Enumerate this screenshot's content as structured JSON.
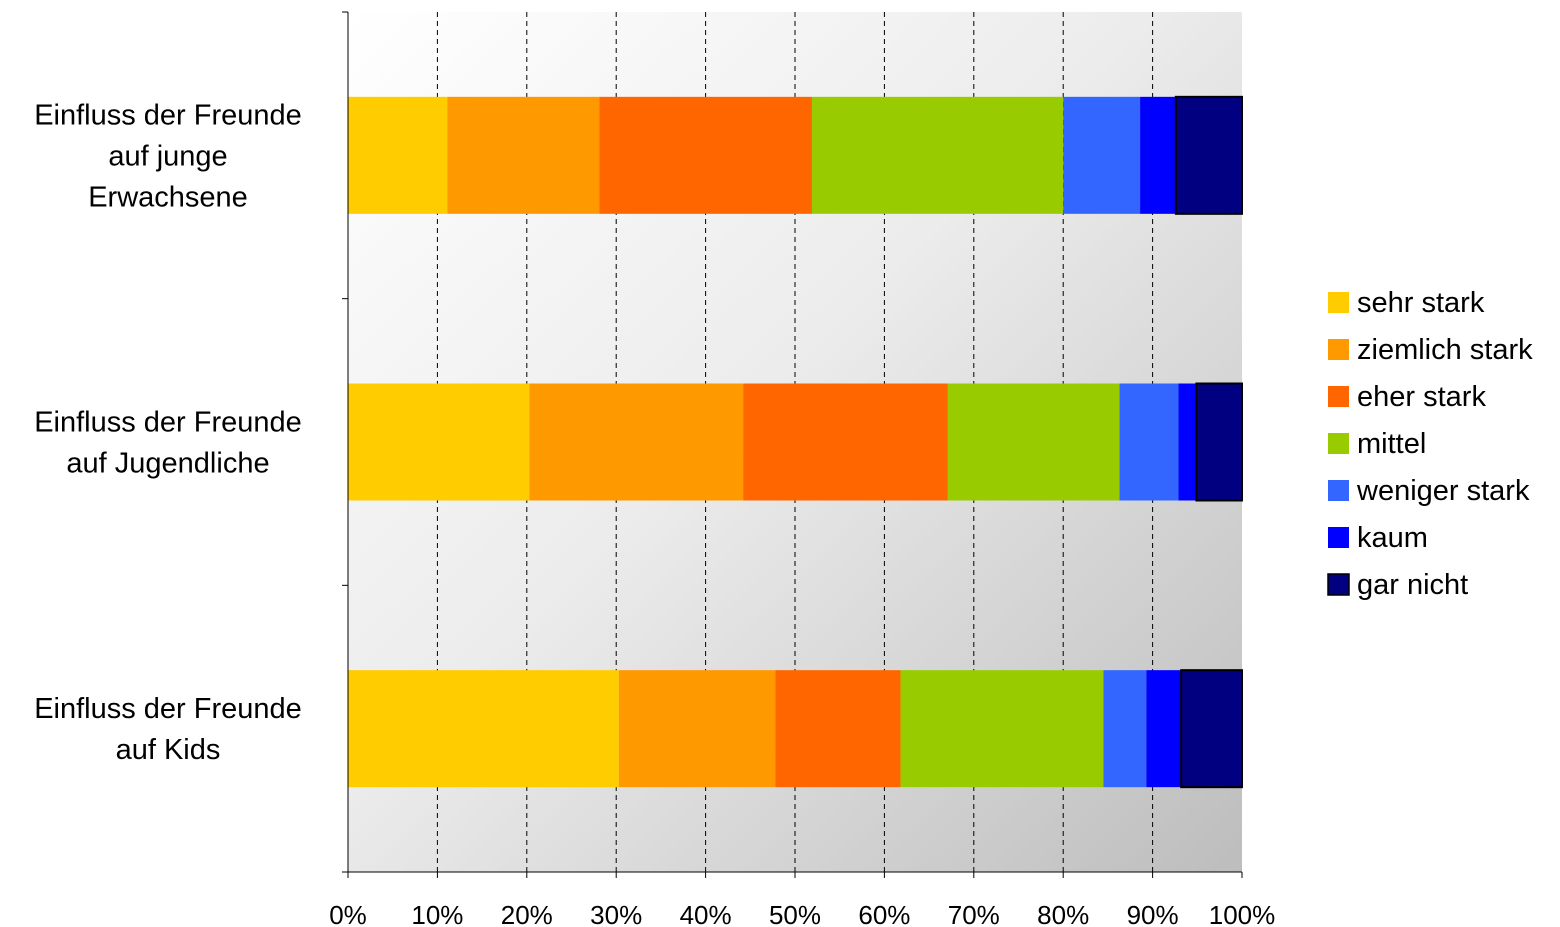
{
  "chart_data": {
    "type": "bar",
    "orientation": "horizontal",
    "stacked": "percent",
    "categories": [
      [
        "Einfluss der Freunde",
        "auf junge",
        "Erwachsene"
      ],
      [
        "Einfluss der Freunde",
        "auf Jugendliche"
      ],
      [
        "Einfluss der Freunde",
        "auf Kids"
      ]
    ],
    "series": [
      {
        "name": "sehr stark",
        "color": "#FFCC00",
        "values": [
          11.1,
          20.3,
          30.3
        ]
      },
      {
        "name": "ziemlich stark",
        "color": "#FF9900",
        "values": [
          17.0,
          23.9,
          17.5
        ]
      },
      {
        "name": "eher stark",
        "color": "#FF6600",
        "values": [
          23.8,
          22.9,
          14.0
        ]
      },
      {
        "name": "mittel",
        "color": "#99CC00",
        "values": [
          28.1,
          19.2,
          22.7
        ]
      },
      {
        "name": "weniger stark",
        "color": "#3366FF",
        "values": [
          8.6,
          6.6,
          4.8
        ]
      },
      {
        "name": "kaum",
        "color": "#0000FF",
        "values": [
          4.0,
          2.0,
          3.9
        ]
      },
      {
        "name": "gar nicht",
        "color": "#000080",
        "values": [
          7.4,
          5.1,
          6.8
        ]
      }
    ],
    "x_ticks": [
      "0%",
      "10%",
      "20%",
      "30%",
      "40%",
      "50%",
      "60%",
      "70%",
      "80%",
      "90%",
      "100%"
    ],
    "xlim": [
      0,
      100
    ],
    "grid": "vertical dashed",
    "legend_position": "right"
  }
}
